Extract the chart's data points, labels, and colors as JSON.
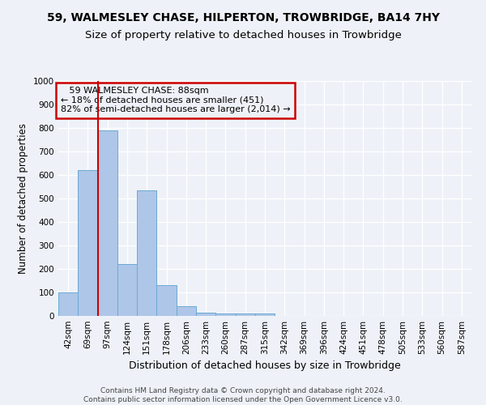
{
  "title1": "59, WALMESLEY CHASE, HILPERTON, TROWBRIDGE, BA14 7HY",
  "title2": "Size of property relative to detached houses in Trowbridge",
  "xlabel": "Distribution of detached houses by size in Trowbridge",
  "ylabel": "Number of detached properties",
  "footer1": "Contains HM Land Registry data © Crown copyright and database right 2024.",
  "footer2": "Contains public sector information licensed under the Open Government Licence v3.0.",
  "annotation_line1": "   59 WALMESLEY CHASE: 88sqm",
  "annotation_line2": "← 18% of detached houses are smaller (451)",
  "annotation_line3": "82% of semi-detached houses are larger (2,014) →",
  "bar_labels": [
    "42sqm",
    "69sqm",
    "97sqm",
    "124sqm",
    "151sqm",
    "178sqm",
    "206sqm",
    "233sqm",
    "260sqm",
    "287sqm",
    "315sqm",
    "342sqm",
    "369sqm",
    "396sqm",
    "424sqm",
    "451sqm",
    "478sqm",
    "505sqm",
    "533sqm",
    "560sqm",
    "587sqm"
  ],
  "bar_values": [
    100,
    620,
    790,
    220,
    535,
    130,
    40,
    15,
    10,
    10,
    10,
    0,
    0,
    0,
    0,
    0,
    0,
    0,
    0,
    0,
    0
  ],
  "bar_color": "#aec6e8",
  "bar_edge_color": "#6aaad4",
  "vline_color": "#cc0000",
  "vline_x": 1.5,
  "ylim": [
    0,
    1000
  ],
  "yticks": [
    0,
    100,
    200,
    300,
    400,
    500,
    600,
    700,
    800,
    900,
    1000
  ],
  "annotation_box_color": "#cc0000",
  "background_color": "#eef2f8",
  "grid_color": "#ffffff",
  "title1_fontsize": 10,
  "title2_fontsize": 9.5,
  "xlabel_fontsize": 9,
  "ylabel_fontsize": 8.5,
  "tick_fontsize": 7.5,
  "footer_fontsize": 6.5,
  "annotation_fontsize": 8
}
